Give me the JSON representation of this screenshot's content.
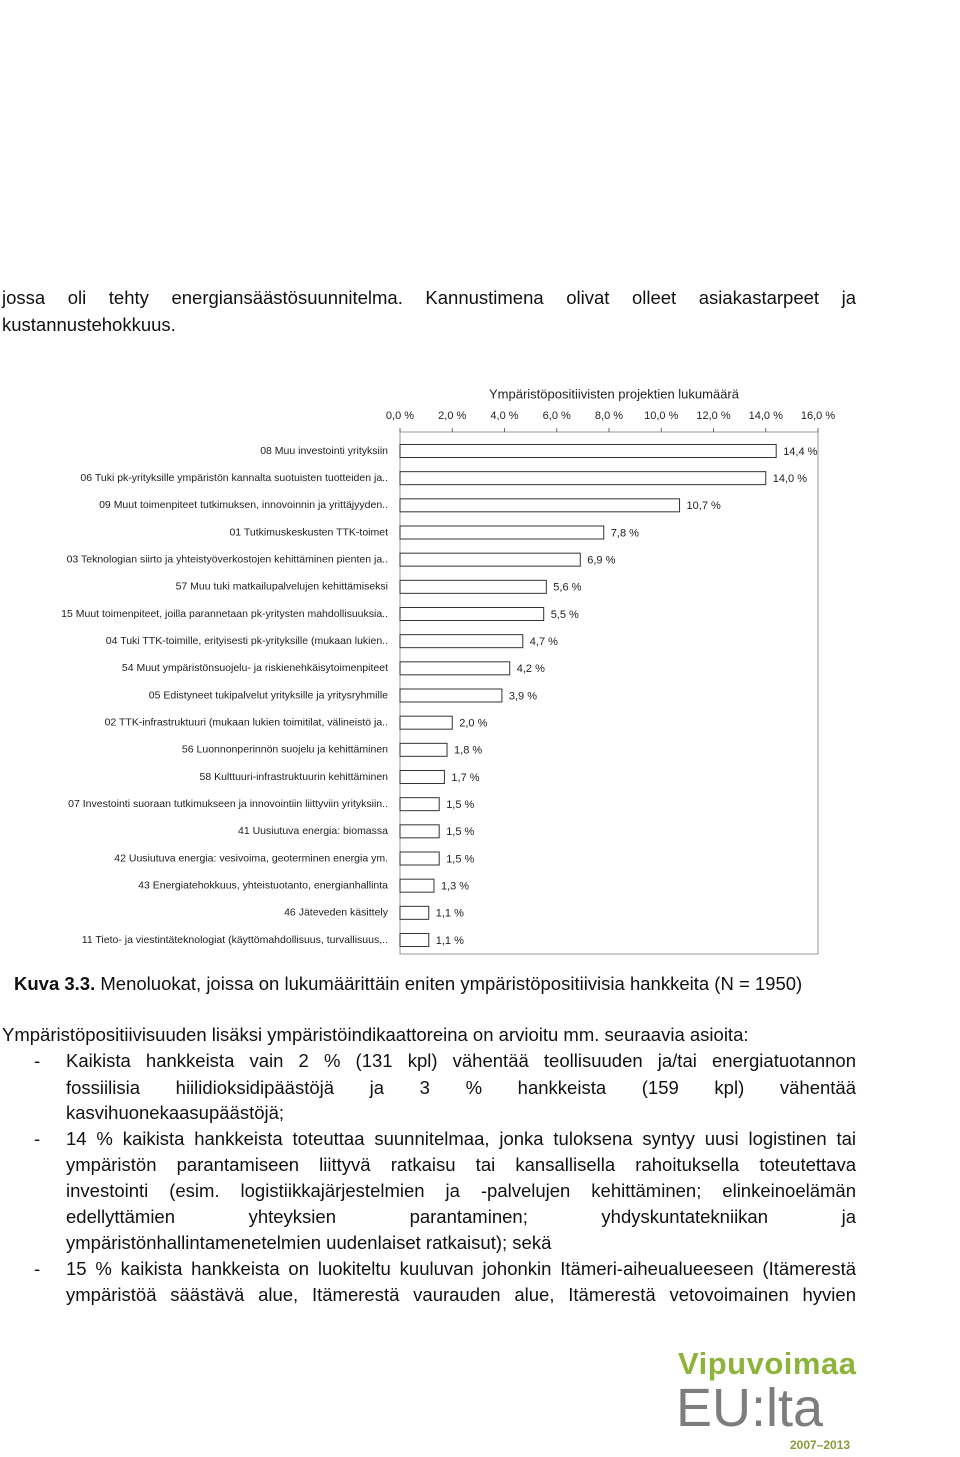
{
  "intro": {
    "lines": [
      "jossa oli tehty energiansäästösuunnitelma. Kannustimena olivat olleet asiakastarpeet ja",
      "kustannustehokkuus."
    ]
  },
  "chart_data": {
    "type": "barh",
    "title": "Ympäristöpositiivisten projektien lukumäärä",
    "categories": [
      "08 Muu investointi yrityksiin",
      "06 Tuki pk-yrityksille ympäristön kannalta suotuisten tuotteiden ja..",
      "09 Muut toimenpiteet tutkimuksen, innovoinnin ja yrittäjyyden..",
      "01 Tutkimuskeskusten TTK-toimet",
      "03 Teknologian siirto ja yhteistyöverkostojen kehittäminen pienten ja..",
      "57 Muu tuki matkailupalvelujen kehittämiseksi",
      "15 Muut toimenpiteet, joilla parannetaan pk-yritysten mahdollisuuksia..",
      "04 Tuki TTK-toimille, erityisesti pk-yrityksille (mukaan lukien..",
      "54 Muut ympäristönsuojelu- ja riskienehkäisytoimenpiteet",
      "05 Edistyneet tukipalvelut yrityksille ja yritysryhmille",
      "02 TTK-infrastruktuuri (mukaan lukien toimitilat, välineistö ja..",
      "56 Luonnonperinnön suojelu ja kehittäminen",
      "58 Kulttuuri-infrastruktuurin kehittäminen",
      "07 Investointi suoraan tutkimukseen ja innovointiin liittyviin yrityksiin..",
      "41 Uusiutuva energia: biomassa",
      "42 Uusiutuva energia: vesivoima, geoterminen energia ym.",
      "43 Energiatehokkuus, yhteistuotanto, energianhallinta",
      "46 Jäteveden käsittely",
      "11 Tieto- ja viestintäteknologiat (käyttömahdollisuus, turvallisuus,.."
    ],
    "values": [
      14.4,
      14.0,
      10.7,
      7.8,
      6.9,
      5.6,
      5.5,
      4.7,
      4.2,
      3.9,
      2.0,
      1.8,
      1.7,
      1.5,
      1.5,
      1.5,
      1.3,
      1.1,
      1.1
    ],
    "value_labels": [
      "14,4 %",
      "14,0 %",
      "10,7 %",
      "7,8 %",
      "6,9 %",
      "5,6 %",
      "5,5 %",
      "4,7 %",
      "4,2 %",
      "3,9 %",
      "2,0 %",
      "1,8 %",
      "1,7 %",
      "1,5 %",
      "1,5 %",
      "1,5 %",
      "1,3 %",
      "1,1 %",
      "1,1 %"
    ],
    "color": "#ffffff",
    "xlim": [
      0,
      16
    ],
    "xticks": [
      {
        "value": 0,
        "label": "0,0 %"
      },
      {
        "value": 2,
        "label": "2,0 %"
      },
      {
        "value": 4,
        "label": "4,0 %"
      },
      {
        "value": 6,
        "label": "6,0 %"
      },
      {
        "value": 8,
        "label": "8,0 %"
      },
      {
        "value": 10,
        "label": "10,0 %"
      },
      {
        "value": 12,
        "label": "12,0 %"
      },
      {
        "value": 14,
        "label": "14,0 %"
      },
      {
        "value": 16,
        "label": "16,0 %"
      }
    ]
  },
  "caption": {
    "label": "Kuva 3.3.",
    "text": "Menoluokat, joissa on lukumäärittäin eniten ympäristöpositiivisia hankkeita (N = 1950)"
  },
  "paragraph": "Ympäristöpositiivisuuden lisäksi ympäristöindikaattoreina on arvioitu mm. seuraavia asioita:",
  "bullets": [
    {
      "marker": "-",
      "lines": [
        "Kaikista hankkeista vain 2 % (131 kpl) vähentää teollisuuden ja/tai energiatuotannon",
        "fossiilisia hiilidioksidipäästöjä ja 3 % hankkeista (159 kpl) vähentää",
        "kasvihuonekaasupäästöjä;"
      ]
    },
    {
      "marker": "-",
      "lines": [
        "14 % kaikista hankkeista toteuttaa suunnitelmaa, jonka tuloksena syntyy uusi logistinen tai",
        "ympäristön parantamiseen liittyvä ratkaisu tai kansallisella rahoituksella toteutettava",
        "investointi (esim. logistiikkajärjestelmien ja -palvelujen kehittäminen; elinkeinoelämän",
        "edellyttämien yhteyksien parantaminen; yhdyskuntatekniikan ja",
        "ympäristönhallintamenetelmien uudenlaiset ratkaisut); sekä"
      ]
    },
    {
      "marker": "-",
      "lines": [
        "15 % kaikista hankkeista on luokiteltu kuuluvan johonkin Itämeri-aiheualueeseen (Itämerestä",
        "ympäristöä säästävä alue, Itämerestä vaurauden alue, Itämerestä vetovoimainen hyvien"
      ]
    }
  ],
  "logo": {
    "name": "Vipuvoimaa",
    "sub": "EU:lta",
    "years": "2007–2013"
  }
}
